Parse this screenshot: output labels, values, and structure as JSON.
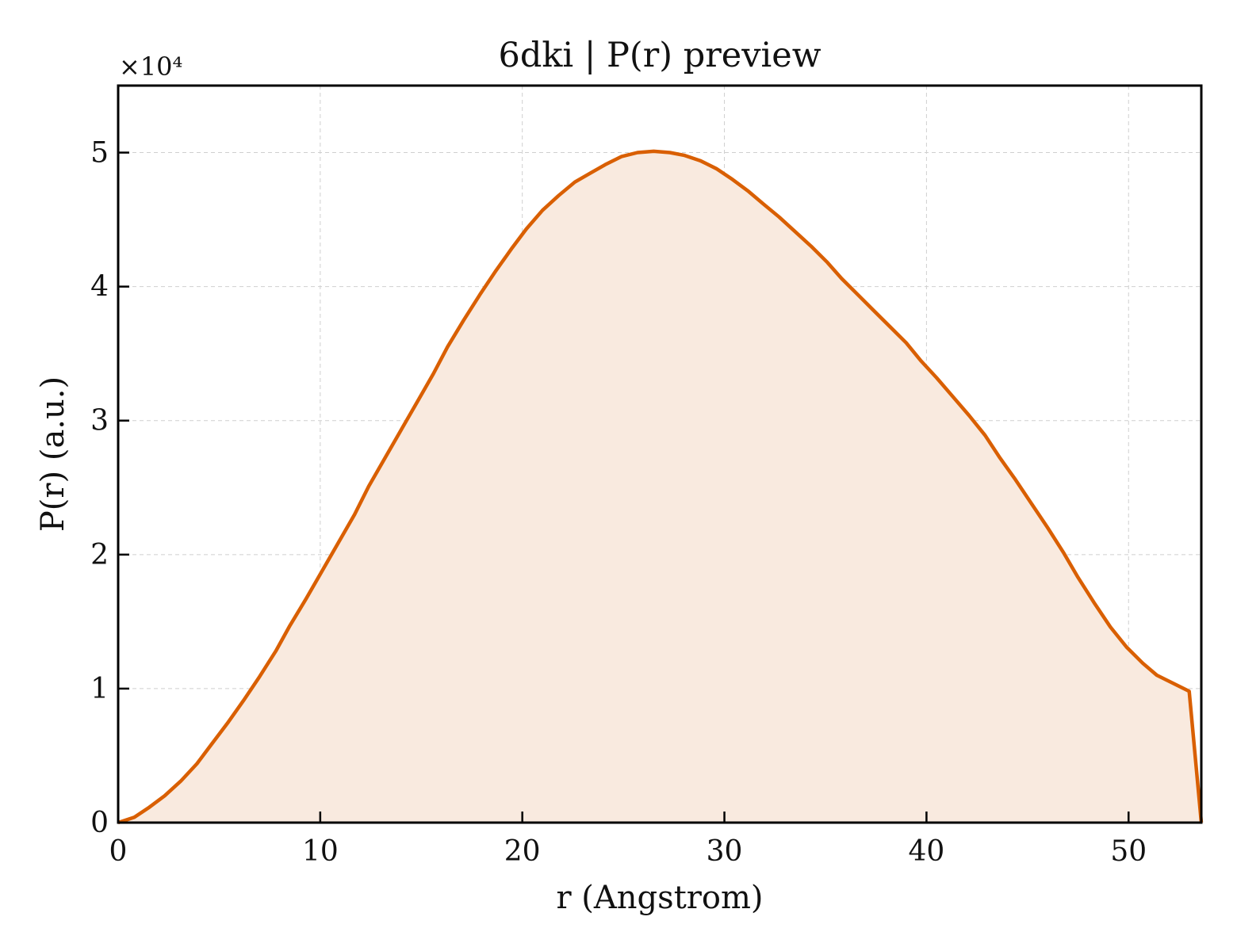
{
  "chart_data": {
    "type": "area",
    "title": "6dki | P(r) preview",
    "xlabel": "r (Angstrom)",
    "ylabel": "P(r) (a.u.)",
    "y_multiplier_label": "×10⁴",
    "y_multiplier": 10000,
    "xlim": [
      0,
      53.6
    ],
    "ylim": [
      0,
      55000
    ],
    "x_ticks": [
      0,
      10,
      20,
      30,
      40,
      50
    ],
    "x_tick_labels": [
      "0",
      "10",
      "20",
      "30",
      "40",
      "50"
    ],
    "y_ticks": [
      0,
      10000,
      20000,
      30000,
      40000,
      50000
    ],
    "y_tick_labels": [
      "0",
      "1",
      "2",
      "3",
      "4",
      "5"
    ],
    "grid": true,
    "legend": "none",
    "line_color": "#d95f02",
    "fill_color": "#f9eadf",
    "series": [
      {
        "x": [
          0,
          0.8,
          1.5,
          2.3,
          3.1,
          3.9,
          4.6,
          5.4,
          6.2,
          7.0,
          7.8,
          8.5,
          9.3,
          10.1,
          10.9,
          11.7,
          12.4,
          13.2,
          14.0,
          14.8,
          15.6,
          16.3,
          17.1,
          17.9,
          18.7,
          19.5,
          20.2,
          21.0,
          21.8,
          22.6,
          23.4,
          24.1,
          24.9,
          25.7,
          26.5,
          27.3,
          28.0,
          28.8,
          29.6,
          30.4,
          31.2,
          31.9,
          32.7,
          33.5,
          34.3,
          35.1,
          35.8,
          36.6,
          37.4,
          38.2,
          39.0,
          39.7,
          40.5,
          41.3,
          42.1,
          42.9,
          43.6,
          44.4,
          45.2,
          46.0,
          46.8,
          47.5,
          48.3,
          49.1,
          49.9,
          50.7,
          51.4,
          52.2,
          53.0,
          53.6
        ],
        "y": [
          0,
          400,
          1100,
          2000,
          3100,
          4400,
          5800,
          7400,
          9100,
          10900,
          12800,
          14700,
          16700,
          18800,
          20900,
          23000,
          25100,
          27200,
          29300,
          31400,
          33500,
          35500,
          37500,
          39400,
          41200,
          42900,
          44300,
          45700,
          46800,
          47800,
          48500,
          49100,
          49700,
          50000,
          50100,
          50000,
          49800,
          49400,
          48800,
          48000,
          47100,
          46200,
          45200,
          44100,
          43000,
          41800,
          40600,
          39400,
          38200,
          37000,
          35800,
          34500,
          33200,
          31800,
          30400,
          28900,
          27300,
          25600,
          23800,
          22000,
          20100,
          18300,
          16400,
          14600,
          13100,
          11900,
          11000,
          10400,
          9800,
          0
        ]
      }
    ]
  }
}
